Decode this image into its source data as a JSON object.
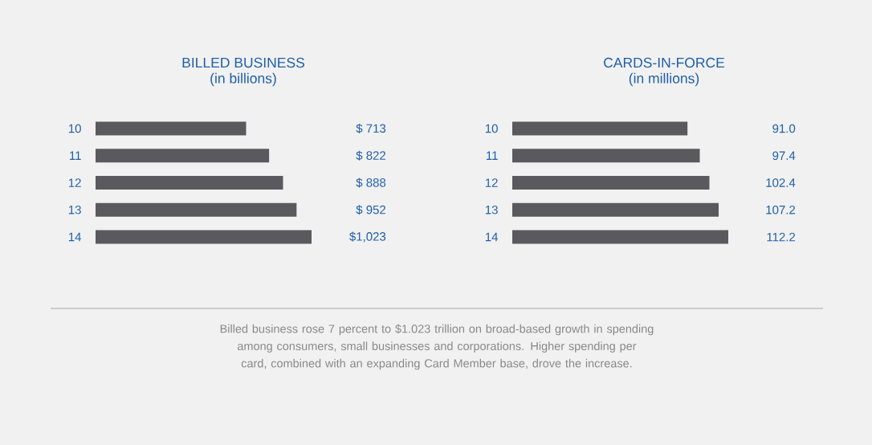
{
  "chart_data": [
    {
      "type": "bar",
      "orientation": "horizontal",
      "title": "BILLED BUSINESS",
      "subtitle": "(in billions)",
      "categories": [
        "10",
        "11",
        "12",
        "13",
        "14"
      ],
      "values": [
        713,
        822,
        888,
        952,
        1023
      ],
      "color": "#5a595e",
      "value_labels": [
        "$   713",
        "$   822",
        "$   888",
        "$   952",
        "$1,023"
      ],
      "annotations": [
        "Billed business rose 7 percent to $1.023 trillion on broad-based growth in spending among consumers, small businesses and corporations. Higher spending per card, combined with an expanding Card Member base, drove the increase."
      ]
    },
    {
      "type": "bar",
      "orientation": "horizontal",
      "title": "CARDS-IN-FORCE",
      "subtitle": "(in millions)",
      "categories": [
        "10",
        "11",
        "12",
        "13",
        "14"
      ],
      "values": [
        91.0,
        97.4,
        102.4,
        107.2,
        112.2
      ],
      "color": "#5a595e",
      "value_labels": [
        "91.0",
        "97.4",
        "102.4",
        "107.2",
        "112.2"
      ]
    }
  ]
}
